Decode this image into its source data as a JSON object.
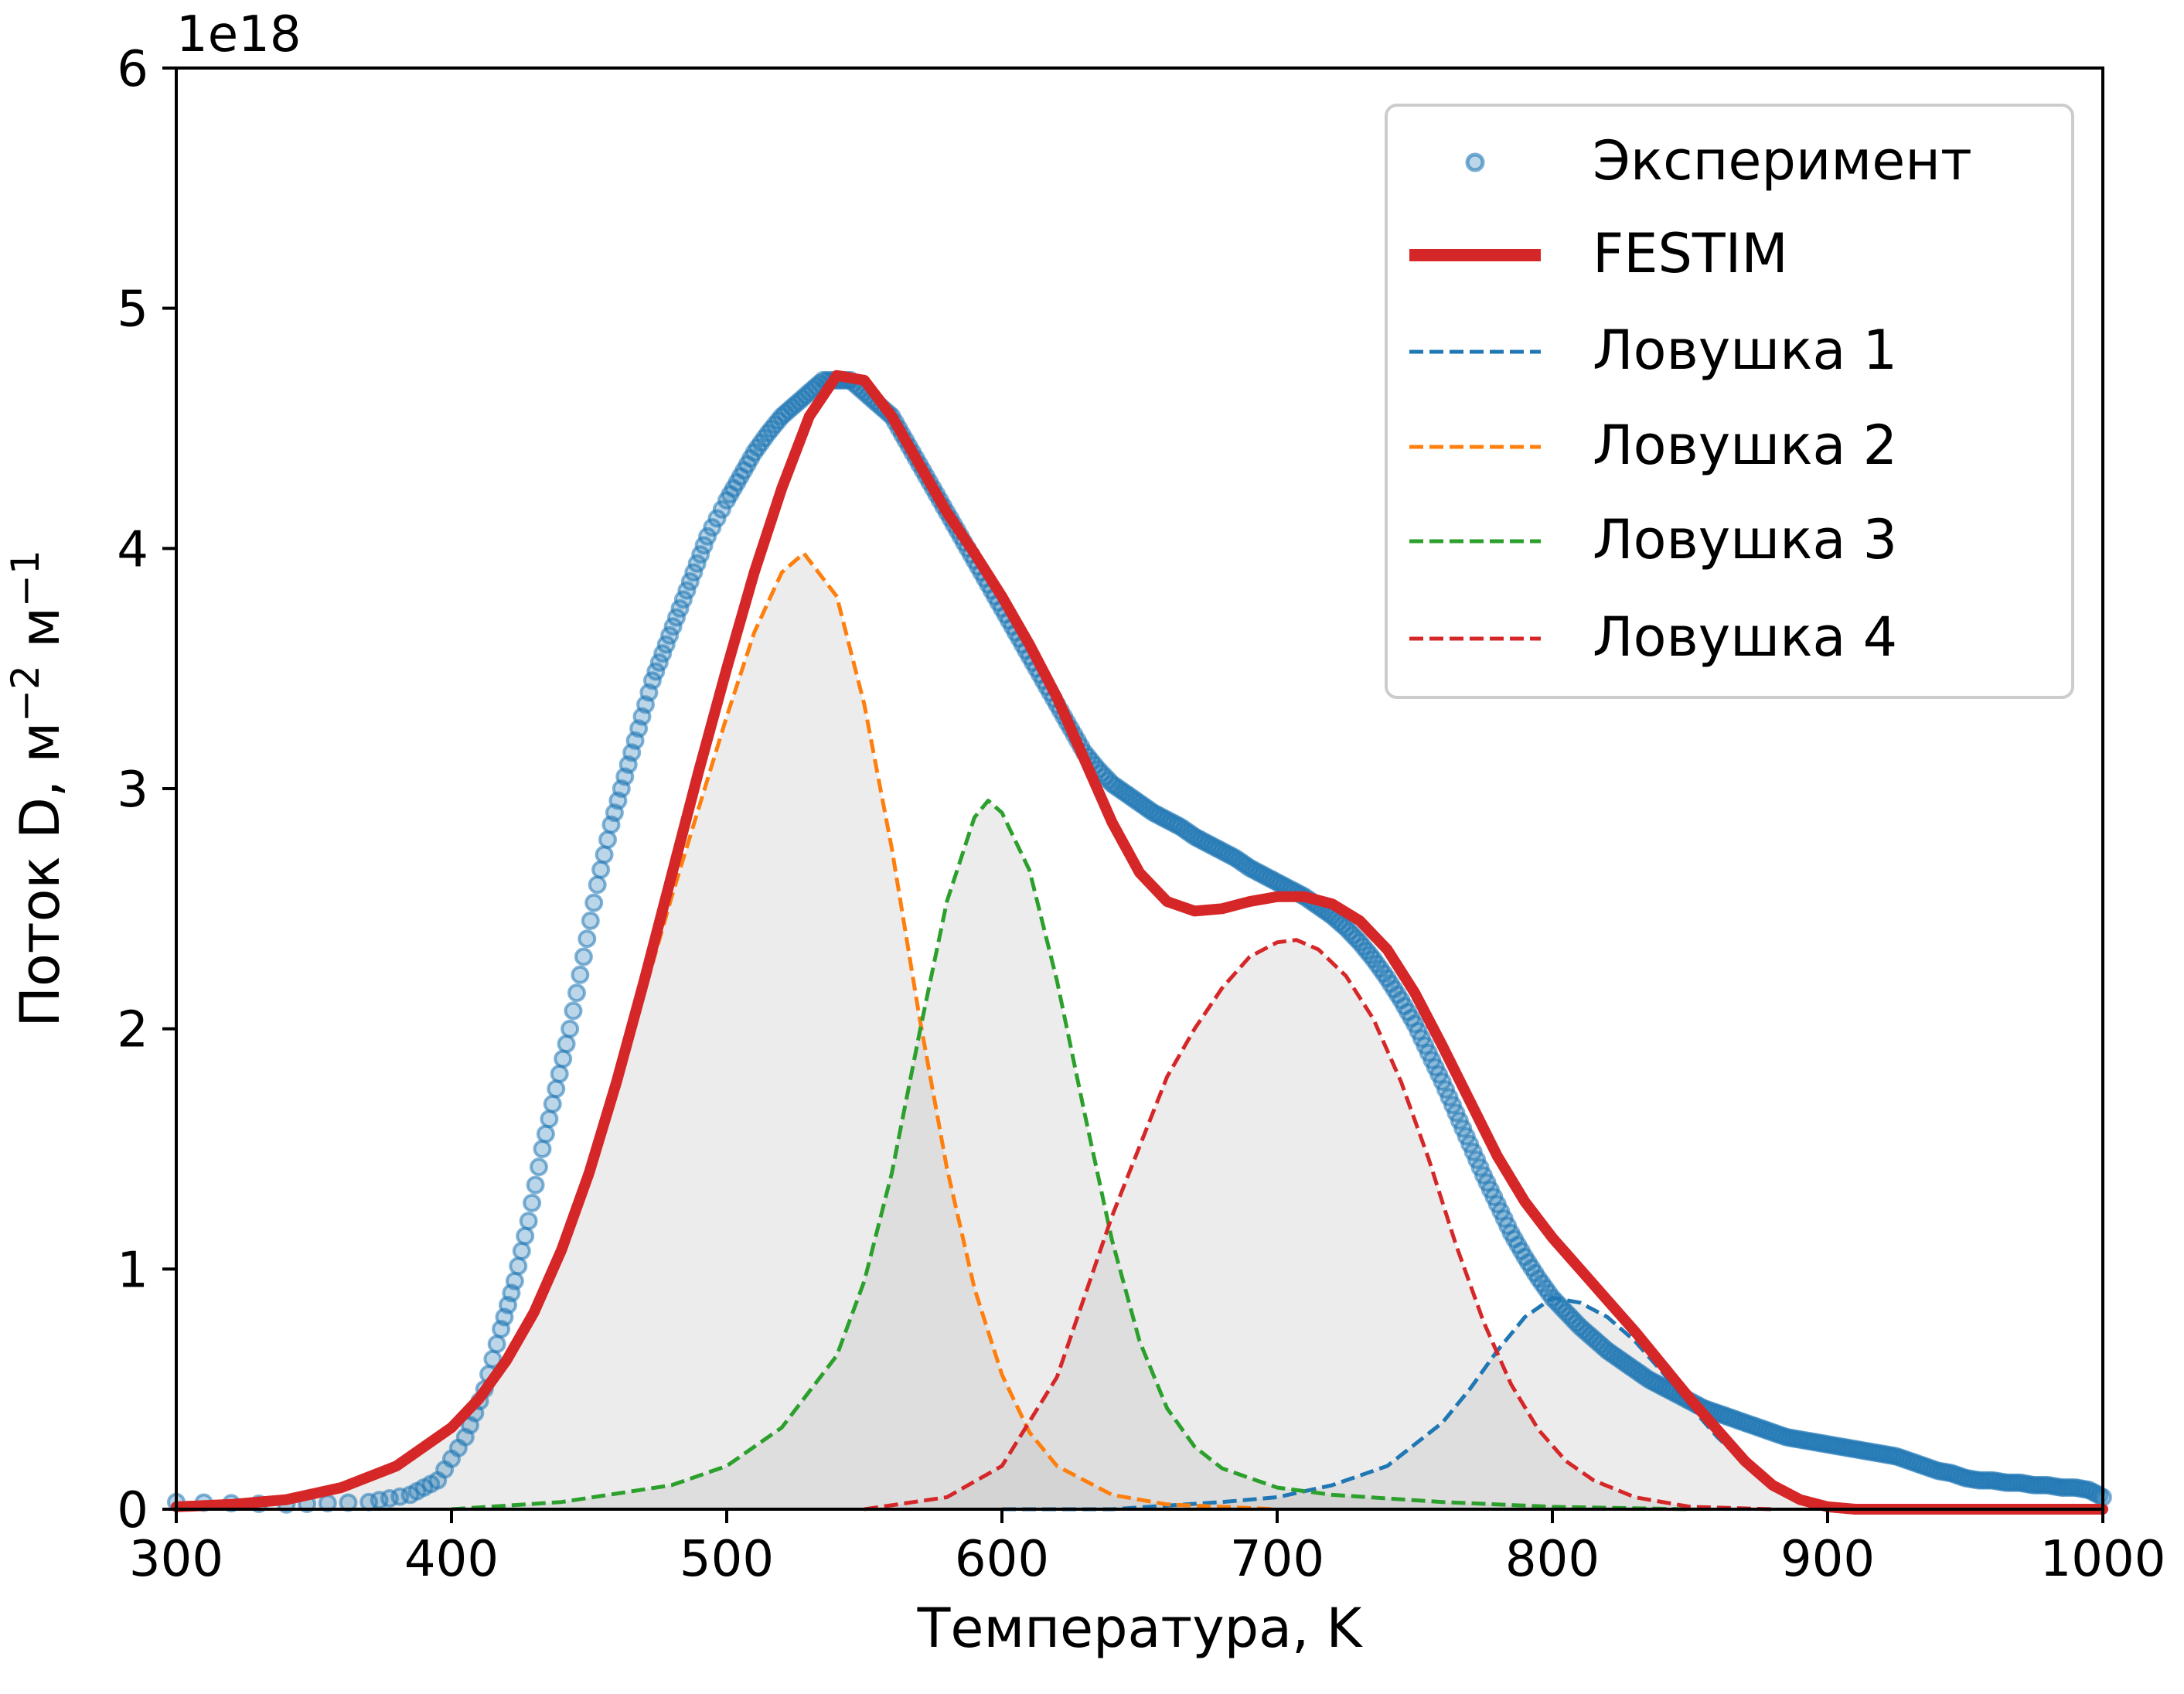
{
  "chart_data": {
    "type": "line",
    "title": "",
    "xlabel": "Температура, K",
    "ylabel": "Поток D, м",
    "ylabel_sup1": "−2",
    "ylabel_mid": " м",
    "ylabel_sup2": "−1",
    "y_offset_label": "1e18",
    "xlim": [
      300,
      1000
    ],
    "ylim": [
      0,
      6
    ],
    "x_ticks": [
      300,
      400,
      500,
      600,
      700,
      800,
      900,
      1000
    ],
    "x_tick_labels": [
      "300",
      "400",
      "500",
      "600",
      "700",
      "800",
      "900",
      "1000"
    ],
    "y_ticks": [
      0,
      1,
      2,
      3,
      4,
      5,
      6
    ],
    "y_tick_labels": [
      "0",
      "1",
      "2",
      "3",
      "4",
      "5",
      "6"
    ],
    "grid": false,
    "legend_position": "top-right",
    "experiment": {
      "name": "Эксперимент",
      "color": "#1f77b4",
      "points": [
        [
          300,
          0.03
        ],
        [
          340,
          0.02
        ],
        [
          370,
          0.03
        ],
        [
          385,
          0.06
        ],
        [
          395,
          0.12
        ],
        [
          405,
          0.3
        ],
        [
          412,
          0.5
        ],
        [
          418,
          0.75
        ],
        [
          423,
          0.95
        ],
        [
          428,
          1.2
        ],
        [
          433,
          1.5
        ],
        [
          438,
          1.75
        ],
        [
          443,
          2.0
        ],
        [
          448,
          2.3
        ],
        [
          453,
          2.6
        ],
        [
          458,
          2.85
        ],
        [
          463,
          3.05
        ],
        [
          468,
          3.25
        ],
        [
          473,
          3.45
        ],
        [
          478,
          3.6
        ],
        [
          483,
          3.75
        ],
        [
          488,
          3.9
        ],
        [
          493,
          4.05
        ],
        [
          500,
          4.2
        ],
        [
          505,
          4.3
        ],
        [
          510,
          4.4
        ],
        [
          515,
          4.48
        ],
        [
          520,
          4.55
        ],
        [
          525,
          4.6
        ],
        [
          530,
          4.65
        ],
        [
          535,
          4.7
        ],
        [
          540,
          4.7
        ],
        [
          545,
          4.7
        ],
        [
          550,
          4.65
        ],
        [
          555,
          4.6
        ],
        [
          560,
          4.55
        ],
        [
          565,
          4.45
        ],
        [
          570,
          4.35
        ],
        [
          575,
          4.25
        ],
        [
          580,
          4.15
        ],
        [
          585,
          4.05
        ],
        [
          590,
          3.95
        ],
        [
          595,
          3.85
        ],
        [
          600,
          3.75
        ],
        [
          605,
          3.65
        ],
        [
          610,
          3.55
        ],
        [
          615,
          3.45
        ],
        [
          620,
          3.35
        ],
        [
          625,
          3.25
        ],
        [
          630,
          3.15
        ],
        [
          635,
          3.08
        ],
        [
          640,
          3.02
        ],
        [
          645,
          2.98
        ],
        [
          650,
          2.94
        ],
        [
          655,
          2.9
        ],
        [
          660,
          2.87
        ],
        [
          665,
          2.84
        ],
        [
          670,
          2.8
        ],
        [
          675,
          2.77
        ],
        [
          680,
          2.74
        ],
        [
          685,
          2.71
        ],
        [
          690,
          2.67
        ],
        [
          695,
          2.64
        ],
        [
          700,
          2.61
        ],
        [
          705,
          2.58
        ],
        [
          710,
          2.55
        ],
        [
          715,
          2.51
        ],
        [
          720,
          2.47
        ],
        [
          725,
          2.42
        ],
        [
          730,
          2.36
        ],
        [
          735,
          2.29
        ],
        [
          740,
          2.21
        ],
        [
          745,
          2.12
        ],
        [
          750,
          2.02
        ],
        [
          755,
          1.9
        ],
        [
          760,
          1.78
        ],
        [
          765,
          1.65
        ],
        [
          770,
          1.52
        ],
        [
          775,
          1.39
        ],
        [
          780,
          1.27
        ],
        [
          785,
          1.15
        ],
        [
          790,
          1.05
        ],
        [
          795,
          0.96
        ],
        [
          800,
          0.88
        ],
        [
          805,
          0.82
        ],
        [
          810,
          0.76
        ],
        [
          815,
          0.71
        ],
        [
          820,
          0.66
        ],
        [
          825,
          0.62
        ],
        [
          830,
          0.58
        ],
        [
          835,
          0.54
        ],
        [
          840,
          0.51
        ],
        [
          845,
          0.48
        ],
        [
          850,
          0.45
        ],
        [
          855,
          0.42
        ],
        [
          860,
          0.4
        ],
        [
          865,
          0.38
        ],
        [
          870,
          0.36
        ],
        [
          875,
          0.34
        ],
        [
          880,
          0.32
        ],
        [
          885,
          0.3
        ],
        [
          890,
          0.29
        ],
        [
          895,
          0.28
        ],
        [
          900,
          0.27
        ],
        [
          905,
          0.26
        ],
        [
          910,
          0.25
        ],
        [
          915,
          0.24
        ],
        [
          920,
          0.23
        ],
        [
          925,
          0.22
        ],
        [
          930,
          0.2
        ],
        [
          935,
          0.18
        ],
        [
          940,
          0.16
        ],
        [
          945,
          0.15
        ],
        [
          950,
          0.13
        ],
        [
          955,
          0.12
        ],
        [
          960,
          0.12
        ],
        [
          965,
          0.11
        ],
        [
          970,
          0.11
        ],
        [
          975,
          0.1
        ],
        [
          980,
          0.1
        ],
        [
          985,
          0.09
        ],
        [
          990,
          0.09
        ],
        [
          995,
          0.08
        ],
        [
          1000,
          0.05
        ]
      ]
    },
    "series": [
      {
        "name": "FESTIM",
        "color": "#d62728",
        "x": [
          300,
          320,
          340,
          360,
          380,
          400,
          410,
          420,
          430,
          440,
          450,
          460,
          470,
          480,
          490,
          500,
          510,
          520,
          530,
          540,
          550,
          560,
          570,
          580,
          590,
          600,
          610,
          620,
          630,
          640,
          650,
          660,
          670,
          680,
          690,
          700,
          710,
          720,
          730,
          740,
          750,
          760,
          770,
          780,
          790,
          800,
          810,
          820,
          830,
          840,
          850,
          860,
          870,
          880,
          890,
          900,
          910,
          920,
          950,
          1000
        ],
        "y": [
          0.01,
          0.02,
          0.04,
          0.09,
          0.18,
          0.34,
          0.46,
          0.62,
          0.82,
          1.08,
          1.4,
          1.78,
          2.2,
          2.64,
          3.08,
          3.5,
          3.9,
          4.25,
          4.55,
          4.72,
          4.7,
          4.55,
          4.35,
          4.15,
          3.98,
          3.8,
          3.6,
          3.38,
          3.12,
          2.86,
          2.65,
          2.53,
          2.49,
          2.5,
          2.53,
          2.55,
          2.55,
          2.52,
          2.45,
          2.33,
          2.15,
          1.93,
          1.7,
          1.47,
          1.28,
          1.13,
          1.0,
          0.87,
          0.74,
          0.6,
          0.46,
          0.33,
          0.2,
          0.1,
          0.04,
          0.01,
          0.0,
          0.0,
          0.0,
          0.0
        ]
      },
      {
        "name": "Ловушка 1",
        "color": "#1f77b4",
        "x": [
          600,
          640,
          680,
          700,
          720,
          740,
          760,
          770,
          780,
          790,
          800,
          810,
          820,
          830,
          840,
          850,
          860,
          870,
          880,
          890,
          900,
          910,
          920,
          950
        ],
        "y": [
          0.0,
          0.0,
          0.03,
          0.05,
          0.1,
          0.18,
          0.36,
          0.5,
          0.66,
          0.8,
          0.88,
          0.86,
          0.8,
          0.7,
          0.57,
          0.43,
          0.3,
          0.19,
          0.11,
          0.05,
          0.02,
          0.01,
          0.0,
          0.0
        ]
      },
      {
        "name": "Ловушка 2",
        "color": "#ff7f0e",
        "x": [
          300,
          320,
          340,
          360,
          380,
          400,
          420,
          440,
          460,
          480,
          500,
          510,
          520,
          528,
          540,
          550,
          560,
          570,
          580,
          590,
          600,
          610,
          620,
          640,
          660,
          680,
          700
        ],
        "y": [
          0.01,
          0.02,
          0.04,
          0.09,
          0.18,
          0.33,
          0.62,
          1.08,
          1.75,
          2.55,
          3.3,
          3.65,
          3.9,
          3.98,
          3.8,
          3.35,
          2.75,
          2.05,
          1.42,
          0.92,
          0.56,
          0.32,
          0.18,
          0.06,
          0.02,
          0.01,
          0.0
        ]
      },
      {
        "name": "Ловушка 3",
        "color": "#2ca02c",
        "x": [
          400,
          440,
          480,
          500,
          520,
          540,
          550,
          560,
          570,
          580,
          590,
          595,
          600,
          610,
          620,
          630,
          640,
          650,
          660,
          670,
          680,
          700,
          720,
          760,
          800,
          850
        ],
        "y": [
          0.0,
          0.03,
          0.1,
          0.18,
          0.34,
          0.64,
          0.95,
          1.4,
          1.98,
          2.53,
          2.88,
          2.95,
          2.9,
          2.66,
          2.2,
          1.65,
          1.12,
          0.7,
          0.42,
          0.26,
          0.17,
          0.09,
          0.06,
          0.03,
          0.01,
          0.0
        ]
      },
      {
        "name": "Ловушка 4",
        "color": "#d62728",
        "x": [
          550,
          580,
          600,
          620,
          640,
          660,
          670,
          680,
          690,
          700,
          707,
          715,
          725,
          735,
          745,
          755,
          765,
          775,
          785,
          795,
          805,
          815,
          830,
          850,
          880
        ],
        "y": [
          0.0,
          0.05,
          0.18,
          0.55,
          1.22,
          1.8,
          2.0,
          2.17,
          2.3,
          2.36,
          2.37,
          2.33,
          2.22,
          2.04,
          1.78,
          1.46,
          1.1,
          0.78,
          0.52,
          0.33,
          0.2,
          0.12,
          0.05,
          0.01,
          0.0
        ]
      }
    ],
    "fill_color": "#bbbbbb"
  }
}
